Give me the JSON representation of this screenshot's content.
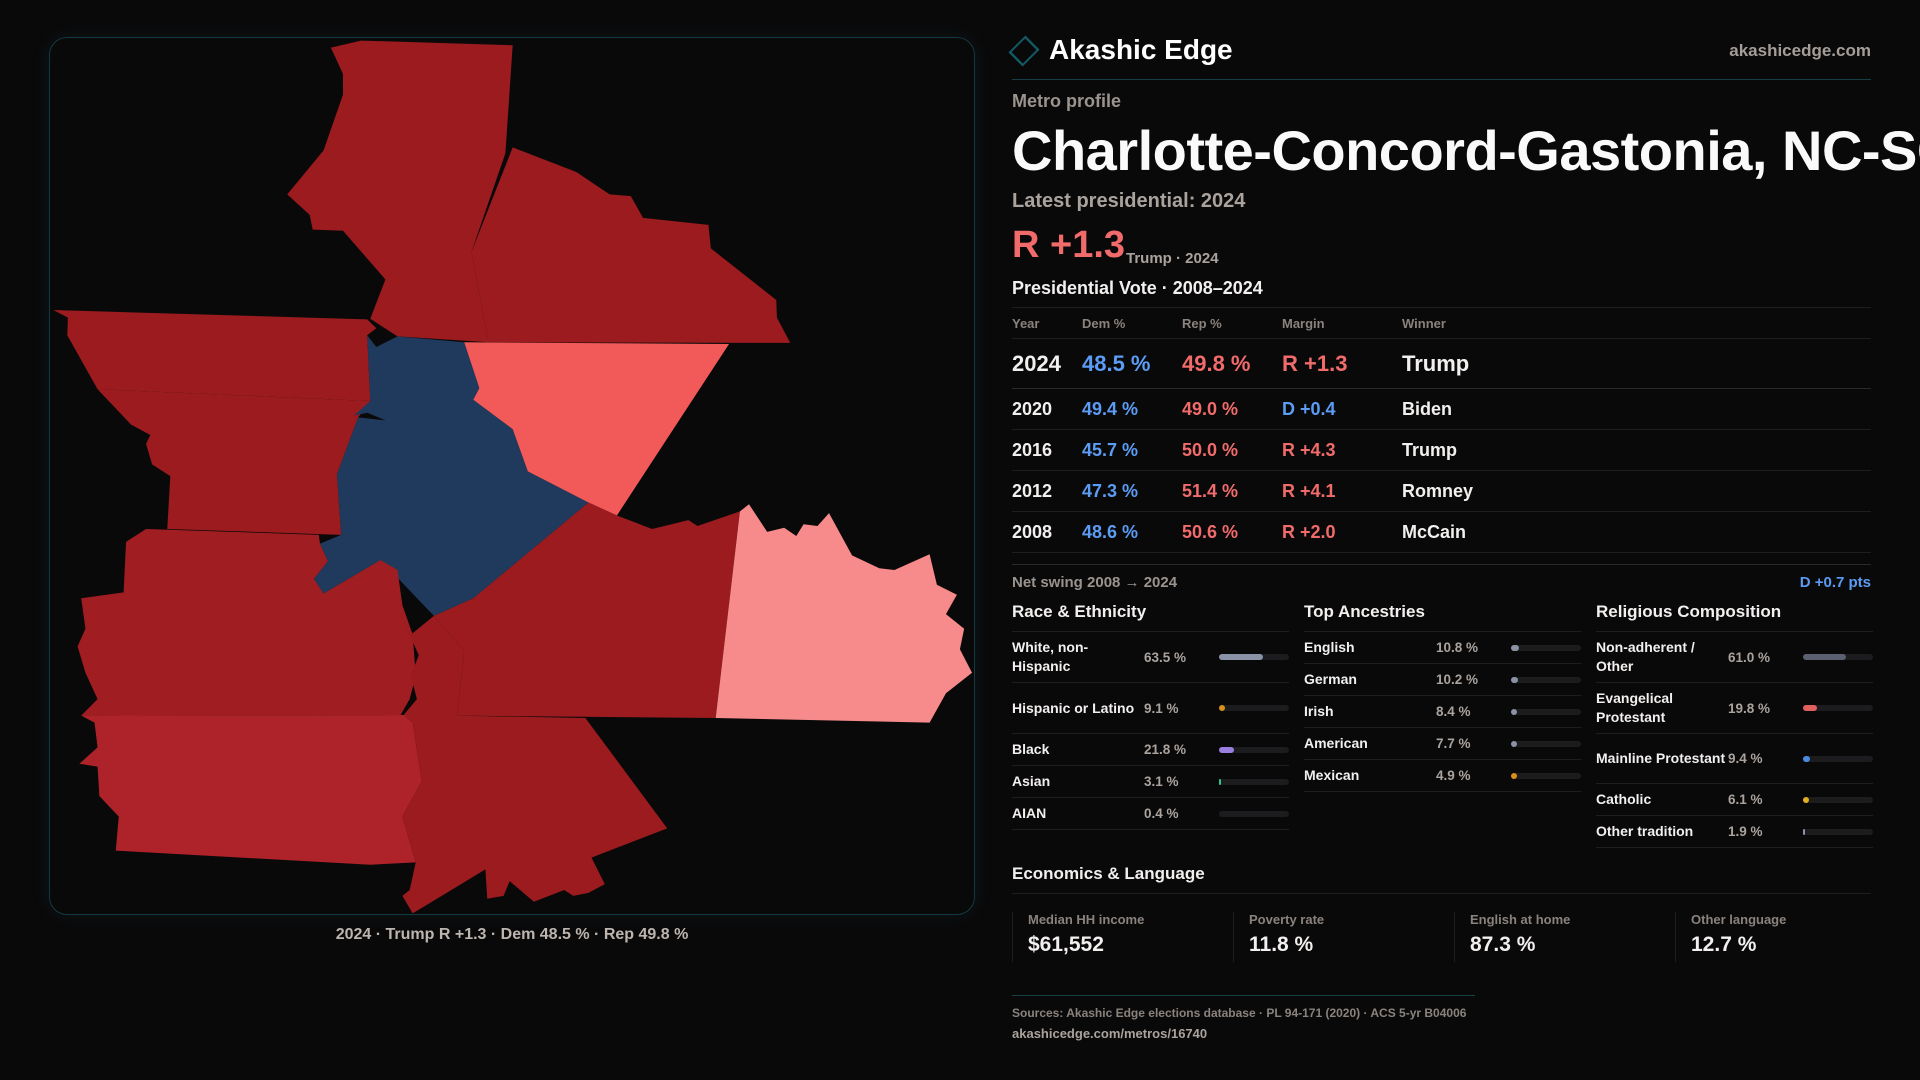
{
  "brand": {
    "name": "Akashic Edge",
    "site": "akashicedge.com"
  },
  "kicker": "Metro profile",
  "title": "Charlotte-Concord-Gastonia, NC-SC",
  "latest_label": "Latest presidential: 2024",
  "latest_margin": "R +1.3",
  "latest_sub": "Trump · 2024",
  "map": {
    "caption": "2024 · Trump R +1.3 · Dem 48.5 % · Rep 49.8 %",
    "colors": {
      "safe_r": "#9b1b1f",
      "likely_r": "#ae2329",
      "lean_r": "#f25a5a",
      "tilt_r": "#f78a8a",
      "dem": "#1f3a5c"
    }
  },
  "votes": {
    "title": "Presidential Vote · 2008–2024",
    "headers": [
      "Year",
      "Dem %",
      "Rep %",
      "Margin",
      "Winner"
    ],
    "rows": [
      {
        "year": "2024",
        "dem": "48.5 %",
        "rep": "49.8 %",
        "margin": "R +1.3",
        "party": "R",
        "winner": "Trump"
      },
      {
        "year": "2020",
        "dem": "49.4 %",
        "rep": "49.0 %",
        "margin": "D +0.4",
        "party": "D",
        "winner": "Biden"
      },
      {
        "year": "2016",
        "dem": "45.7 %",
        "rep": "50.0 %",
        "margin": "R +4.3",
        "party": "R",
        "winner": "Trump"
      },
      {
        "year": "2012",
        "dem": "47.3 %",
        "rep": "51.4 %",
        "margin": "R +4.1",
        "party": "R",
        "winner": "Romney"
      },
      {
        "year": "2008",
        "dem": "48.6 %",
        "rep": "50.6 %",
        "margin": "R +2.0",
        "party": "R",
        "winner": "McCain"
      }
    ],
    "swing_label": "Net swing 2008 → 2024",
    "swing_value": "D +0.7 pts"
  },
  "race": {
    "title": "Race & Ethnicity",
    "items": [
      {
        "label": "White, non-Hispanic",
        "value": "63.5 %",
        "pct": 63.5,
        "color": "#8a93a6"
      },
      {
        "label": "Hispanic or Latino",
        "value": "9.1 %",
        "pct": 9.1,
        "color": "#d9901a"
      },
      {
        "label": "Black",
        "value": "21.8 %",
        "pct": 21.8,
        "color": "#9b7fe0"
      },
      {
        "label": "Asian",
        "value": "3.1 %",
        "pct": 3.1,
        "color": "#2fc48d"
      },
      {
        "label": "AIAN",
        "value": "0.4 %",
        "pct": 0.4,
        "color": "#5a6070"
      }
    ]
  },
  "ancestry": {
    "title": "Top Ancestries",
    "items": [
      {
        "label": "English",
        "value": "10.8 %",
        "pct": 10.8,
        "color": "#8a93a6"
      },
      {
        "label": "German",
        "value": "10.2 %",
        "pct": 10.2,
        "color": "#8a93a6"
      },
      {
        "label": "Irish",
        "value": "8.4 %",
        "pct": 8.4,
        "color": "#8a93a6"
      },
      {
        "label": "American",
        "value": "7.7 %",
        "pct": 7.7,
        "color": "#8a93a6"
      },
      {
        "label": "Mexican",
        "value": "4.9 %",
        "pct": 4.9,
        "color": "#d9901a"
      }
    ]
  },
  "religion": {
    "title": "Religious Composition",
    "items": [
      {
        "label": "Non-adherent / Other",
        "value": "61.0 %",
        "pct": 61.0,
        "color": "#5a6070"
      },
      {
        "label": "Evangelical Protestant",
        "value": "19.8 %",
        "pct": 19.8,
        "color": "#e06060"
      },
      {
        "label": "Mainline Protestant",
        "value": "9.4 %",
        "pct": 9.4,
        "color": "#4a8ae0"
      },
      {
        "label": "Catholic",
        "value": "6.1 %",
        "pct": 6.1,
        "color": "#e0b020"
      },
      {
        "label": "Other tradition",
        "value": "1.9 %",
        "pct": 1.9,
        "color": "#8a93a6"
      }
    ]
  },
  "econ": {
    "title": "Economics & Language",
    "stats": [
      {
        "label": "Median HH income",
        "value": "$61,552"
      },
      {
        "label": "Poverty rate",
        "value": "11.8 %"
      },
      {
        "label": "English at home",
        "value": "87.3 %"
      },
      {
        "label": "Other language",
        "value": "12.7 %"
      }
    ]
  },
  "sources": "Sources: Akashic Edge elections database · PL 94-171 (2020) · ACS 5-yr B04006",
  "url": "akashicedge.com/metros/16740"
}
